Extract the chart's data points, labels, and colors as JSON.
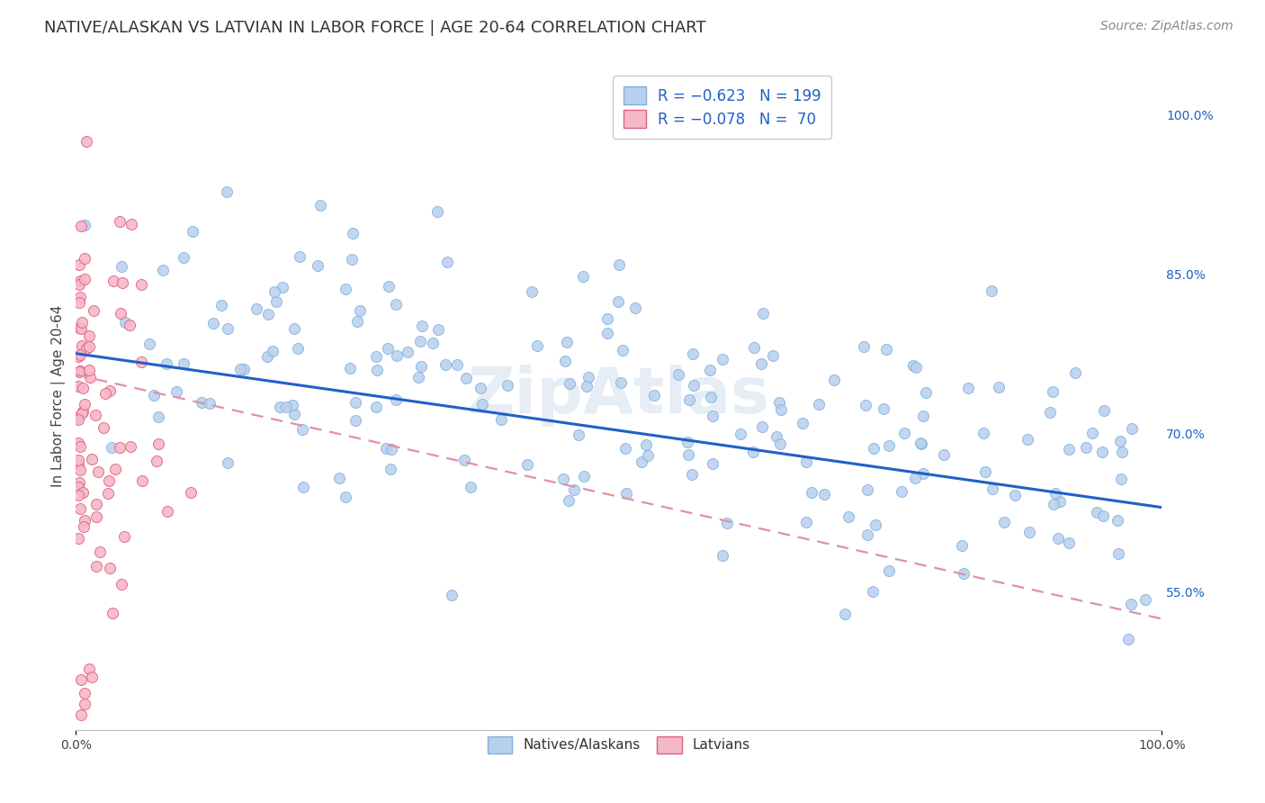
{
  "title": "NATIVE/ALASKAN VS LATVIAN IN LABOR FORCE | AGE 20-64 CORRELATION CHART",
  "source": "Source: ZipAtlas.com",
  "ylabel": "In Labor Force | Age 20-64",
  "xlim": [
    0.0,
    1.0
  ],
  "ylim": [
    0.42,
    1.05
  ],
  "y_tick_labels_right": [
    "55.0%",
    "70.0%",
    "85.0%",
    "100.0%"
  ],
  "y_tick_positions_right": [
    0.55,
    0.7,
    0.85,
    1.0
  ],
  "blue_R": -0.623,
  "blue_N": 199,
  "pink_R": -0.078,
  "pink_N": 70,
  "blue_color": "#b8d0ed",
  "pink_color": "#f5b8c8",
  "blue_line_color": "#2060c8",
  "pink_line_color": "#e090a8",
  "blue_edge_color": "#80b0dc",
  "pink_edge_color": "#e06080",
  "background_color": "#ffffff",
  "grid_color": "#cccccc",
  "watermark": "ZipAtlas",
  "title_fontsize": 13,
  "source_fontsize": 10,
  "ylabel_fontsize": 11,
  "tick_fontsize": 10,
  "blue_line_intercept": 0.775,
  "blue_line_slope": -0.145,
  "pink_line_intercept": 0.755,
  "pink_line_slope": -0.23
}
